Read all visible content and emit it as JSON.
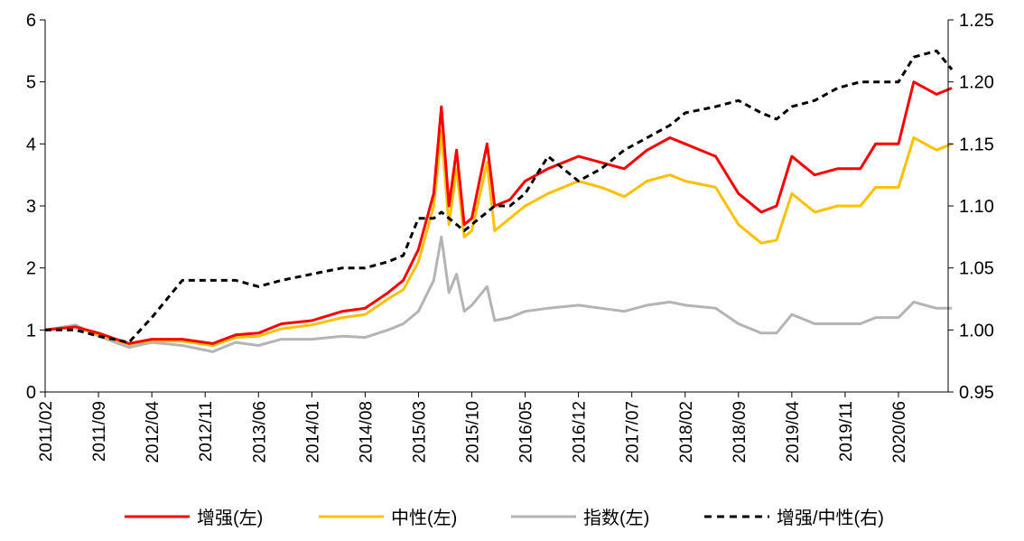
{
  "chart_data": {
    "type": "line",
    "title": "",
    "x": [
      "2011/02",
      "2011/06",
      "2011/09",
      "2012/01",
      "2012/04",
      "2012/08",
      "2012/12",
      "2013/03",
      "2013/06",
      "2013/09",
      "2014/01",
      "2014/05",
      "2014/08",
      "2014/11",
      "2015/01",
      "2015/03",
      "2015/05",
      "2015/06",
      "2015/07",
      "2015/08",
      "2015/09",
      "2015/10",
      "2015/12",
      "2016/01",
      "2016/03",
      "2016/05",
      "2016/08",
      "2016/12",
      "2017/03",
      "2017/06",
      "2017/09",
      "2017/12",
      "2018/02",
      "2018/06",
      "2018/09",
      "2018/12",
      "2019/02",
      "2019/04",
      "2019/07",
      "2019/10",
      "2020/01",
      "2020/03",
      "2020/06",
      "2020/08",
      "2020/11",
      "2021/01"
    ],
    "xlim": [
      "2011/02",
      "2021/01"
    ],
    "x_ticks": [
      "2011/02",
      "2011/09",
      "2012/04",
      "2012/11",
      "2013/06",
      "2014/01",
      "2014/08",
      "2015/03",
      "2015/10",
      "2016/05",
      "2016/12",
      "2017/07",
      "2018/02",
      "2018/09",
      "2019/04",
      "2019/11",
      "2020/06"
    ],
    "y_left": {
      "ylim": [
        0,
        6
      ],
      "ticks": [
        "0",
        "1",
        "2",
        "3",
        "4",
        "5",
        "6"
      ]
    },
    "y_right": {
      "ylim": [
        0.95,
        1.25
      ],
      "ticks": [
        "0.95",
        "1.00",
        "1.05",
        "1.10",
        "1.15",
        "1.20",
        "1.25"
      ]
    },
    "grid": false,
    "legend_position": "bottom",
    "series": [
      {
        "name": "增强(左)",
        "axis": "left",
        "color": "#ff0000",
        "style": "solid",
        "values": [
          1.0,
          1.05,
          0.95,
          0.78,
          0.85,
          0.85,
          0.78,
          0.92,
          0.95,
          1.1,
          1.15,
          1.3,
          1.35,
          1.6,
          1.8,
          2.3,
          3.2,
          4.6,
          3.0,
          3.9,
          2.7,
          2.8,
          4.0,
          3.0,
          3.1,
          3.4,
          3.6,
          3.8,
          3.7,
          3.6,
          3.9,
          4.1,
          4.0,
          3.8,
          3.2,
          2.9,
          3.0,
          3.8,
          3.5,
          3.6,
          3.6,
          4.0,
          4.0,
          5.0,
          4.8,
          4.9
        ]
      },
      {
        "name": "中性(左)",
        "axis": "left",
        "color": "#ffc000",
        "style": "solid",
        "values": [
          1.0,
          1.05,
          0.92,
          0.77,
          0.83,
          0.82,
          0.75,
          0.88,
          0.9,
          1.02,
          1.08,
          1.2,
          1.25,
          1.5,
          1.65,
          2.1,
          3.0,
          4.2,
          2.7,
          3.6,
          2.5,
          2.6,
          3.7,
          2.6,
          2.8,
          3.0,
          3.2,
          3.4,
          3.3,
          3.15,
          3.4,
          3.5,
          3.4,
          3.3,
          2.7,
          2.4,
          2.45,
          3.2,
          2.9,
          3.0,
          3.0,
          3.3,
          3.3,
          4.1,
          3.9,
          4.0
        ]
      },
      {
        "name": "指数(左)",
        "axis": "left",
        "color": "#b4b4b4",
        "style": "solid",
        "values": [
          1.0,
          1.08,
          0.9,
          0.72,
          0.8,
          0.75,
          0.65,
          0.8,
          0.75,
          0.85,
          0.85,
          0.9,
          0.88,
          1.0,
          1.1,
          1.3,
          1.8,
          2.5,
          1.6,
          1.9,
          1.3,
          1.4,
          1.7,
          1.15,
          1.2,
          1.3,
          1.35,
          1.4,
          1.35,
          1.3,
          1.4,
          1.45,
          1.4,
          1.35,
          1.1,
          0.95,
          0.95,
          1.25,
          1.1,
          1.1,
          1.1,
          1.2,
          1.2,
          1.45,
          1.35,
          1.35
        ]
      },
      {
        "name": "增强/中性(右)",
        "axis": "right",
        "color": "#000000",
        "style": "dashed",
        "values": [
          1.0,
          1.0,
          0.995,
          0.99,
          1.01,
          1.04,
          1.04,
          1.04,
          1.035,
          1.04,
          1.045,
          1.05,
          1.05,
          1.055,
          1.06,
          1.09,
          1.09,
          1.095,
          1.09,
          1.085,
          1.08,
          1.085,
          1.095,
          1.1,
          1.1,
          1.11,
          1.14,
          1.12,
          1.13,
          1.145,
          1.155,
          1.165,
          1.175,
          1.18,
          1.185,
          1.175,
          1.17,
          1.18,
          1.185,
          1.195,
          1.2,
          1.2,
          1.2,
          1.22,
          1.225,
          1.21
        ]
      }
    ]
  }
}
